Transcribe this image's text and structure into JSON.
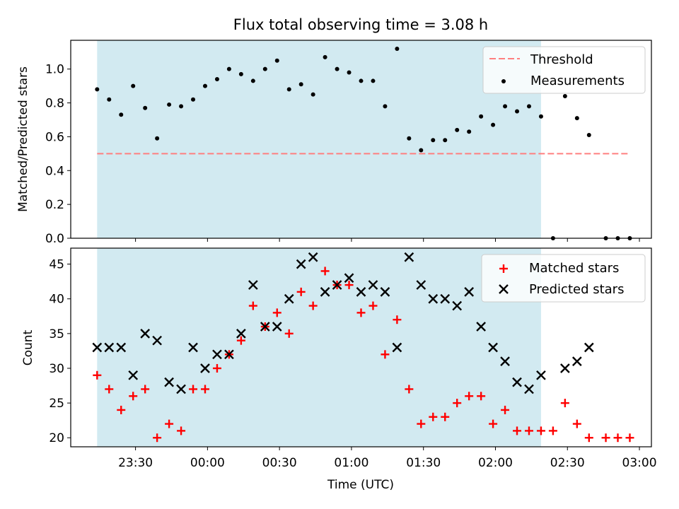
{
  "title": "Flux total observing time = 3.08 h",
  "colors": {
    "shade": "#add8e6",
    "threshold": "#ff7f7f",
    "measurement": "#000000",
    "matched": "#ff0000",
    "predicted": "#000000"
  },
  "chart_data": [
    {
      "type": "scatter",
      "ylabel": "Matched/Predicted stars",
      "xlabel": "",
      "ylim": [
        0,
        1.17
      ],
      "yticks": [
        "0.0",
        "0.2",
        "0.4",
        "0.6",
        "0.8",
        "1.0"
      ],
      "legend_position": "top-right",
      "shaded_interval": [
        "23:14",
        "02:19"
      ],
      "threshold": {
        "name": "Threshold",
        "value": 0.5,
        "x_range": [
          "23:14",
          "02:56"
        ]
      },
      "series": [
        {
          "name": "Measurements",
          "x": [
            "23:14",
            "23:19",
            "23:24",
            "23:29",
            "23:34",
            "23:39",
            "23:44",
            "23:49",
            "23:54",
            "23:59",
            "00:04",
            "00:09",
            "00:14",
            "00:19",
            "00:24",
            "00:29",
            "00:34",
            "00:39",
            "00:44",
            "00:49",
            "00:54",
            "00:59",
            "01:04",
            "01:09",
            "01:14",
            "01:19",
            "01:24",
            "01:29",
            "01:34",
            "01:39",
            "01:44",
            "01:49",
            "01:54",
            "01:59",
            "02:04",
            "02:09",
            "02:14",
            "02:19",
            "02:24",
            "02:29",
            "02:34",
            "02:39",
            "02:46",
            "02:51",
            "02:56"
          ],
          "y": [
            0.88,
            0.82,
            0.73,
            0.9,
            0.77,
            0.59,
            0.79,
            0.78,
            0.82,
            0.9,
            0.94,
            1.0,
            0.97,
            0.93,
            1.0,
            1.05,
            0.88,
            0.91,
            0.85,
            1.07,
            1.0,
            0.98,
            0.93,
            0.93,
            0.78,
            1.12,
            0.59,
            0.52,
            0.58,
            0.58,
            0.64,
            0.63,
            0.72,
            0.67,
            0.78,
            0.75,
            0.78,
            0.72,
            0.0,
            0.84,
            0.71,
            0.61,
            0.0,
            0.0,
            0.0
          ]
        }
      ]
    },
    {
      "type": "scatter",
      "xlabel": "Time (UTC)",
      "ylabel": "Count",
      "ylim": [
        18.7,
        47.3
      ],
      "yticks": [
        "20",
        "25",
        "30",
        "35",
        "40",
        "45"
      ],
      "xticks": [
        "23:30",
        "00:00",
        "00:30",
        "01:00",
        "01:30",
        "02:00",
        "02:30",
        "03:00"
      ],
      "xlim": [
        "23:03",
        "03:05"
      ],
      "legend_position": "top-right",
      "shaded_interval": [
        "23:14",
        "02:19"
      ],
      "series": [
        {
          "name": "Matched stars",
          "x": [
            "23:14",
            "23:19",
            "23:24",
            "23:29",
            "23:34",
            "23:39",
            "23:44",
            "23:49",
            "23:54",
            "23:59",
            "00:04",
            "00:09",
            "00:14",
            "00:19",
            "00:24",
            "00:29",
            "00:34",
            "00:39",
            "00:44",
            "00:49",
            "00:54",
            "00:59",
            "01:04",
            "01:09",
            "01:14",
            "01:19",
            "01:24",
            "01:29",
            "01:34",
            "01:39",
            "01:44",
            "01:49",
            "01:54",
            "01:59",
            "02:04",
            "02:09",
            "02:14",
            "02:19",
            "02:24",
            "02:29",
            "02:34",
            "02:39",
            "02:46",
            "02:51",
            "02:56"
          ],
          "y": [
            29,
            27,
            24,
            26,
            27,
            20,
            22,
            21,
            27,
            27,
            30,
            32,
            34,
            39,
            36,
            38,
            35,
            41,
            39,
            44,
            42,
            42,
            38,
            39,
            32,
            37,
            27,
            22,
            23,
            23,
            25,
            26,
            26,
            22,
            24,
            21,
            21,
            21,
            21,
            25,
            22,
            20,
            20,
            20,
            20
          ]
        },
        {
          "name": "Predicted stars",
          "x": [
            "23:14",
            "23:19",
            "23:24",
            "23:29",
            "23:34",
            "23:39",
            "23:44",
            "23:49",
            "23:54",
            "23:59",
            "00:04",
            "00:09",
            "00:14",
            "00:19",
            "00:24",
            "00:29",
            "00:34",
            "00:39",
            "00:44",
            "00:49",
            "00:54",
            "00:59",
            "01:04",
            "01:09",
            "01:14",
            "01:19",
            "01:24",
            "01:29",
            "01:34",
            "01:39",
            "01:44",
            "01:49",
            "01:54",
            "01:59",
            "02:04",
            "02:09",
            "02:14",
            "02:19",
            "02:29",
            "02:34",
            "02:39"
          ],
          "y": [
            33,
            33,
            33,
            29,
            35,
            34,
            28,
            27,
            33,
            30,
            32,
            32,
            35,
            42,
            36,
            36,
            40,
            45,
            46,
            41,
            42,
            43,
            41,
            42,
            41,
            33,
            46,
            42,
            40,
            40,
            39,
            41,
            36,
            33,
            31,
            28,
            27,
            29,
            30,
            31,
            33
          ]
        }
      ]
    }
  ]
}
